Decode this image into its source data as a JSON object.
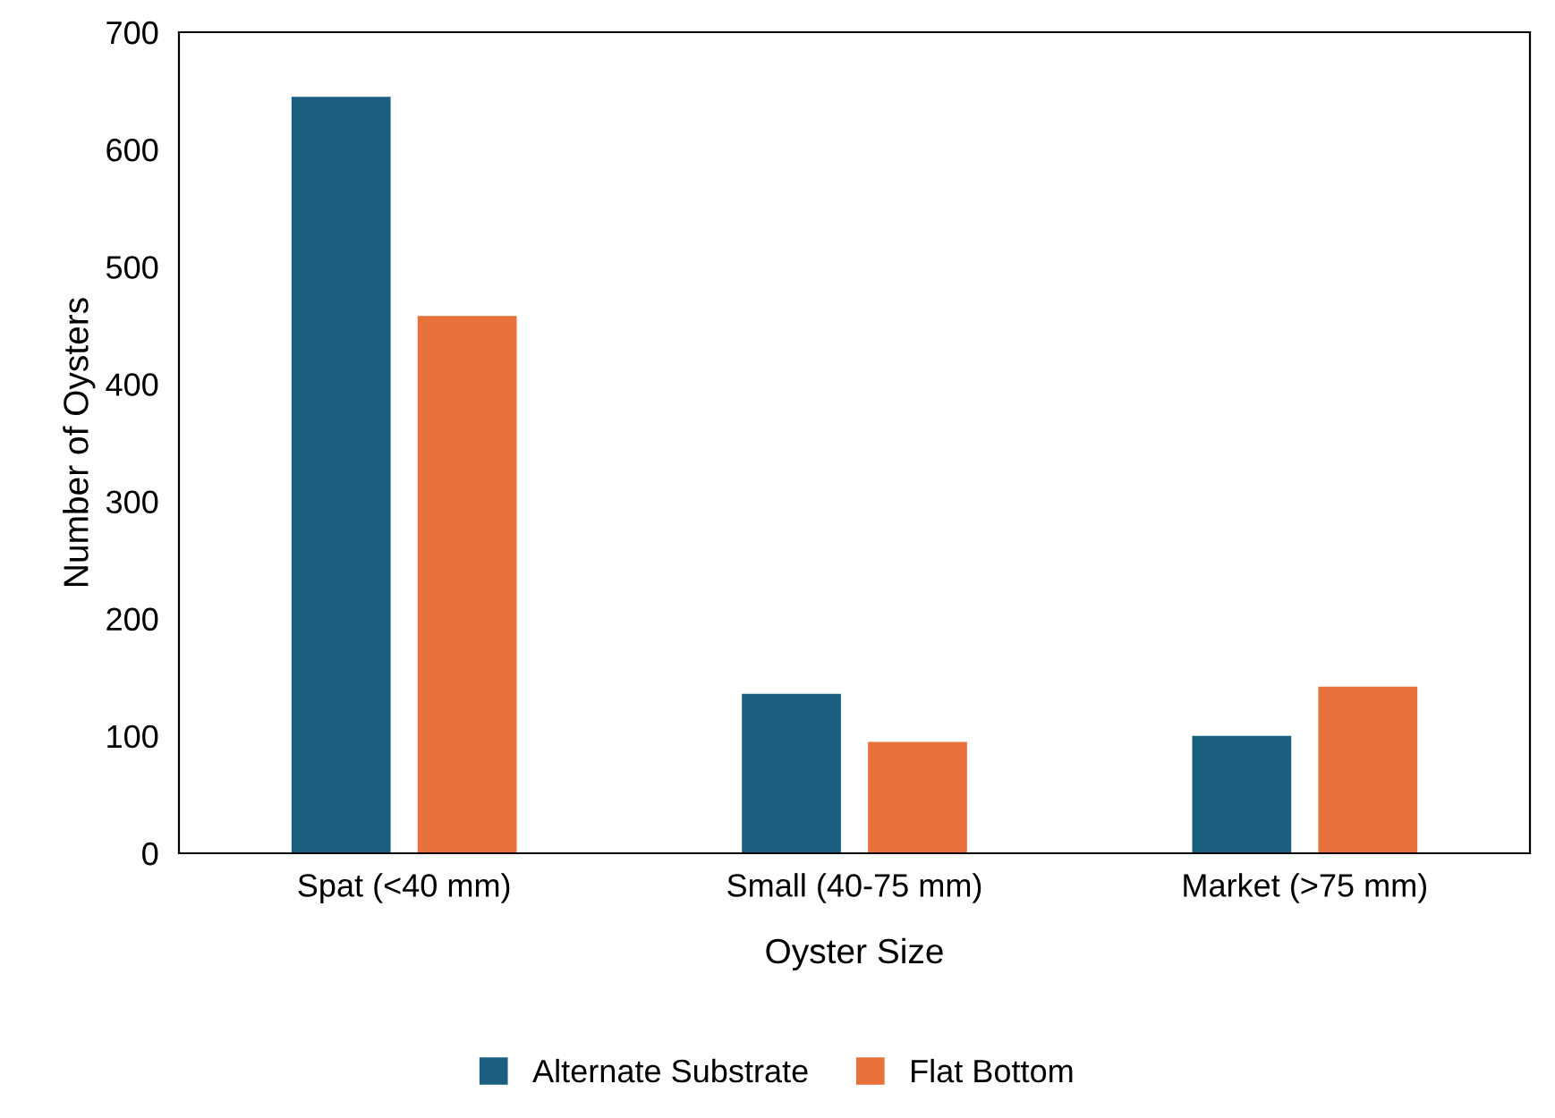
{
  "chart_data": {
    "type": "bar",
    "xlabel": "Oyster Size",
    "ylabel": "Number of Oysters",
    "categories": [
      "Spat (<40 mm)",
      "Small (40-75 mm)",
      "Market (>75 mm)"
    ],
    "series": [
      {
        "name": "Alternate Substrate",
        "color": "#1a5f7f",
        "values": [
          645,
          136,
          100
        ]
      },
      {
        "name": "Flat Bottom",
        "color": "#e8703a",
        "values": [
          458,
          95,
          142
        ]
      }
    ],
    "ylim": [
      0,
      700
    ],
    "yticks": [
      0,
      100,
      200,
      300,
      400,
      500,
      600,
      700
    ],
    "grid": false,
    "legend": "bottom"
  }
}
